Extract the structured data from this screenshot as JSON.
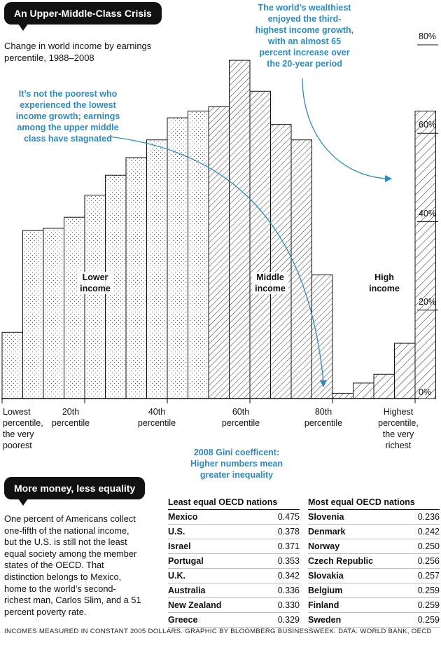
{
  "header": {
    "title": "An Upper-Middle-Class Crisis"
  },
  "subtitle": "Change in world income by earnings percentile, 1988–2008",
  "annotations": {
    "poorest": "It’s not the poorest who experienced the lowest income growth; earnings among the upper middle class have stagnated",
    "wealthiest": "The world’s wealthiest enjoyed the third-highest income growth, with an almost 65 percent increase over the 20-year period",
    "gini": "2008 Gini coefficent: Higher numbers mean greater inequality"
  },
  "chart_data": {
    "type": "bar",
    "title": "Change in world income by earnings percentile, 1988–2008",
    "x_tick_labels": [
      "Lowest percentile, the very poorest",
      "20th percentile",
      "40th percentile",
      "60th percentile",
      "80th percentile",
      "Highest percentile, the very richest"
    ],
    "y_tick_labels": [
      "0%",
      "20%",
      "40%",
      "60%",
      "80%"
    ],
    "ylim": [
      0,
      80
    ],
    "grid": false,
    "groups": [
      {
        "name": "Lower income",
        "pattern": "dots",
        "values": [
          15,
          38,
          38.5,
          41,
          46,
          50.5,
          54.5,
          58.5,
          63.5,
          65
        ]
      },
      {
        "name": "Middle income",
        "pattern": "hatch-dense",
        "values": [
          66,
          76.5,
          69.5,
          62,
          58.5,
          28,
          1.2
        ]
      },
      {
        "name": "High income",
        "pattern": "hatch-wide",
        "values": [
          3.5,
          5.5,
          12.5,
          65
        ]
      }
    ]
  },
  "section2": {
    "title": "More money, less equality",
    "paragraph": "One percent of Americans collect one-fifth of the national income, but the U.S. is still not the least equal society among the member states of the OECD. That distinction belongs to Mexico, home to the world’s second-richest man, Carlos Slim, and a 51 percent poverty rate."
  },
  "tables": {
    "least": {
      "title": "Least equal OECD nations",
      "rows": [
        {
          "name": "Mexico",
          "value": "0.475"
        },
        {
          "name": "U.S.",
          "value": "0.378"
        },
        {
          "name": "Israel",
          "value": "0.371"
        },
        {
          "name": "Portugal",
          "value": "0.353"
        },
        {
          "name": "U.K.",
          "value": "0.342"
        },
        {
          "name": "Australia",
          "value": "0.336"
        },
        {
          "name": "New Zealand",
          "value": "0.330"
        },
        {
          "name": "Greece",
          "value": "0.329"
        }
      ]
    },
    "most": {
      "title": "Most equal OECD nations",
      "rows": [
        {
          "name": "Slovenia",
          "value": "0.236"
        },
        {
          "name": "Denmark",
          "value": "0.242"
        },
        {
          "name": "Norway",
          "value": "0.250"
        },
        {
          "name": "Czech Republic",
          "value": "0.256"
        },
        {
          "name": "Slovakia",
          "value": "0.257"
        },
        {
          "name": "Belgium",
          "value": "0.259"
        },
        {
          "name": "Finland",
          "value": "0.259"
        },
        {
          "name": "Sweden",
          "value": "0.259"
        }
      ]
    }
  },
  "footer": "INCOMES MEASURED IN CONSTANT 2005 DOLLARS. GRAPHIC BY BLOOMBERG BUSINESSWEEK. DATA: WORLD BANK, OECD",
  "colors": {
    "annotation": "#2b8cc4",
    "ink": "#111111"
  }
}
